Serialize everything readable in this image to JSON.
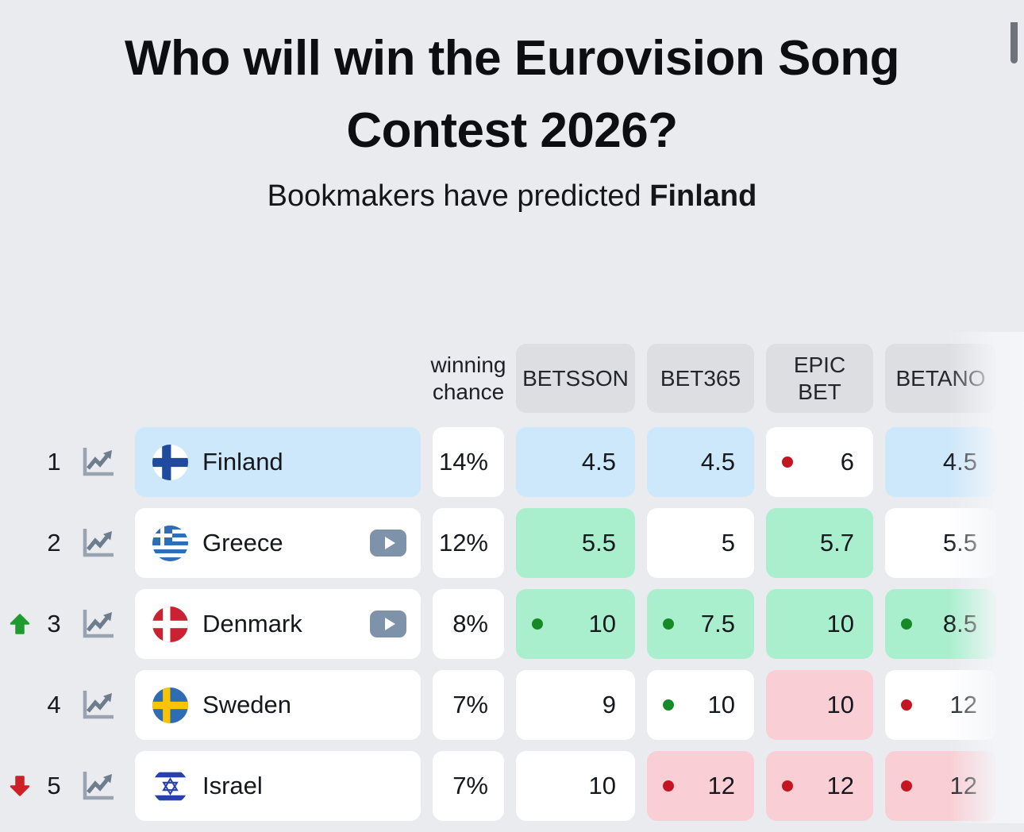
{
  "page": {
    "title": "Who will win the Eurovision Song Contest 2026?",
    "subtitle_prefix": "Bookmakers have predicted",
    "subtitle_highlight": "Finland"
  },
  "table": {
    "chance_header": "winning chance",
    "bookmakers": [
      "BETSSON",
      "BET365",
      "EPIC BET",
      "BETANO"
    ],
    "rows": [
      {
        "rank": "1",
        "movement": "none",
        "country": "Finland",
        "flag": "finland",
        "has_video": false,
        "highlight": "blue",
        "chance": "14%",
        "odds": [
          {
            "value": "4.5",
            "bg": "blue",
            "dot": "none"
          },
          {
            "value": "4.5",
            "bg": "blue",
            "dot": "none"
          },
          {
            "value": "6",
            "bg": "white",
            "dot": "red"
          },
          {
            "value": "4.5",
            "bg": "blue",
            "dot": "none"
          }
        ]
      },
      {
        "rank": "2",
        "movement": "none",
        "country": "Greece",
        "flag": "greece",
        "has_video": true,
        "highlight": "none",
        "chance": "12%",
        "odds": [
          {
            "value": "5.5",
            "bg": "green",
            "dot": "none"
          },
          {
            "value": "5",
            "bg": "white",
            "dot": "none"
          },
          {
            "value": "5.7",
            "bg": "green",
            "dot": "none"
          },
          {
            "value": "5.5",
            "bg": "white",
            "dot": "none"
          }
        ]
      },
      {
        "rank": "3",
        "movement": "up",
        "country": "Denmark",
        "flag": "denmark",
        "has_video": true,
        "highlight": "none",
        "chance": "8%",
        "odds": [
          {
            "value": "10",
            "bg": "green",
            "dot": "green"
          },
          {
            "value": "7.5",
            "bg": "green",
            "dot": "green"
          },
          {
            "value": "10",
            "bg": "green",
            "dot": "none"
          },
          {
            "value": "8.5",
            "bg": "green",
            "dot": "green"
          }
        ]
      },
      {
        "rank": "4",
        "movement": "none",
        "country": "Sweden",
        "flag": "sweden",
        "has_video": false,
        "highlight": "none",
        "chance": "7%",
        "odds": [
          {
            "value": "9",
            "bg": "white",
            "dot": "none"
          },
          {
            "value": "10",
            "bg": "white",
            "dot": "green"
          },
          {
            "value": "10",
            "bg": "pink",
            "dot": "none"
          },
          {
            "value": "12",
            "bg": "white",
            "dot": "red"
          }
        ]
      },
      {
        "rank": "5",
        "movement": "down",
        "country": "Israel",
        "flag": "israel",
        "has_video": false,
        "highlight": "none",
        "chance": "7%",
        "odds": [
          {
            "value": "10",
            "bg": "white",
            "dot": "none"
          },
          {
            "value": "12",
            "bg": "pink",
            "dot": "red"
          },
          {
            "value": "12",
            "bg": "pink",
            "dot": "red"
          },
          {
            "value": "12",
            "bg": "pink",
            "dot": "red"
          }
        ]
      }
    ]
  },
  "colors": {
    "page_bg": "#e9ebef",
    "header_chip": "#dcdee1",
    "cell_blue": "#cde7fb",
    "cell_green": "#a9efcd",
    "cell_pink": "#f9ced4",
    "dot_green": "#178a27",
    "dot_red": "#c31622",
    "arrow_up": "#1f9b2e",
    "arrow_down": "#cd2027"
  }
}
